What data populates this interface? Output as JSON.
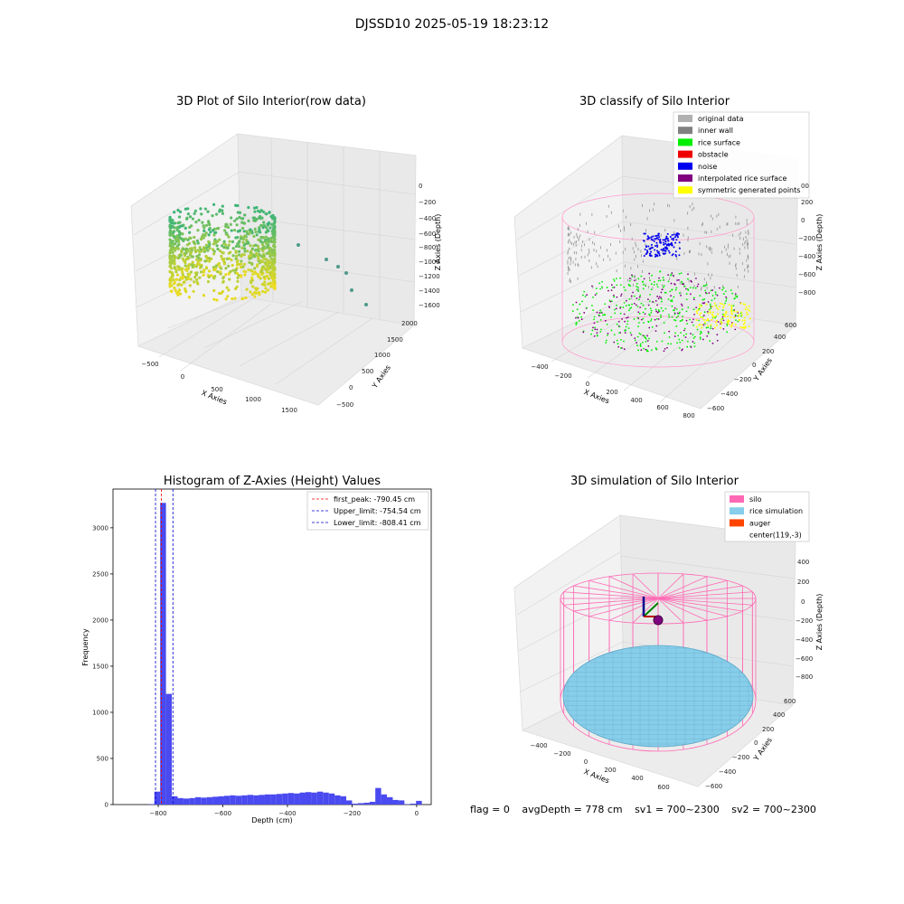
{
  "figure": {
    "suptitle": "DJSSD10 2025-05-19 18:23:12"
  },
  "panels": {
    "raw": {
      "title": "3D Plot of Silo Interior(row data)",
      "xlabel": "X Axies",
      "ylabel": "Y Axies",
      "zlabel": "Z Axies (Depth)",
      "x_ticks": [
        "−500",
        "0",
        "500",
        "1000",
        "1500"
      ],
      "y_ticks": [
        "−500",
        "0",
        "500",
        "1000",
        "1500",
        "2000"
      ],
      "z_ticks": [
        "0",
        "−200",
        "−400",
        "−600",
        "−800",
        "−1000",
        "−1200",
        "−1400",
        "−1600"
      ]
    },
    "classify": {
      "title": "3D classify of Silo Interior",
      "xlabel": "X Axies",
      "ylabel": "Y Axies",
      "zlabel": "Z Axies (Depth)",
      "x_ticks": [
        "−400",
        "−200",
        "0",
        "200",
        "400",
        "600",
        "800"
      ],
      "y_ticks": [
        "−600",
        "−400",
        "−200",
        "0",
        "200",
        "400",
        "600"
      ],
      "z_ticks": [
        "200",
        "0",
        "−200",
        "−400",
        "−600",
        "−800"
      ],
      "z_top_tick": "00",
      "legend": [
        {
          "label": "original data",
          "color": "#b0b0b0"
        },
        {
          "label": "inner wall",
          "color": "#808080"
        },
        {
          "label": "rice surface",
          "color": "#00ee00"
        },
        {
          "label": "obstacle",
          "color": "#ee0000"
        },
        {
          "label": "noise",
          "color": "#0000ee"
        },
        {
          "label": "interpolated rice surface",
          "color": "#800080"
        },
        {
          "label": "symmetric generated points",
          "color": "#ffff00"
        }
      ]
    },
    "simulation": {
      "title": "3D simulation of Silo Interior",
      "xlabel": "X Axies",
      "ylabel": "Y Axies",
      "zlabel": "Z Axies (Depth)",
      "x_ticks": [
        "−400",
        "−200",
        "0",
        "200",
        "400",
        "600"
      ],
      "y_ticks": [
        "−600",
        "−400",
        "−200",
        "0",
        "200",
        "400",
        "600"
      ],
      "z_ticks": [
        "400",
        "200",
        "0",
        "−200",
        "−400",
        "−600",
        "−800"
      ],
      "legend": [
        {
          "label": "silo",
          "color": "#ff69b4"
        },
        {
          "label": "rice simulation",
          "color": "#87ceeb"
        },
        {
          "label": "auger",
          "color": "#ff4500"
        },
        {
          "label": "center(119,-3)",
          "color": ""
        }
      ]
    }
  },
  "footer": {
    "flag": "flag = 0",
    "avg": "avgDepth = 778 cm",
    "sv1": "sv1 = 700~2300",
    "sv2": "sv2 = 700~2300"
  },
  "colors": {
    "histogram_bar": "#4a4af0",
    "first_peak_line": "#ee0000",
    "limit_lines": "#0000cc",
    "silo_wire": "#ff69b4",
    "rice_surface": "#87ceeb"
  },
  "chart_data": {
    "type": "bar",
    "title": "Histogram of Z-Axies (Height) Values",
    "xlabel": "Depth (cm)",
    "ylabel": "Frequency",
    "xlim": [
      -940,
      45
    ],
    "ylim": [
      0,
      3420
    ],
    "x_ticks": [
      -800,
      -600,
      -400,
      -200,
      0
    ],
    "x_tick_labels": [
      "−800",
      "−600",
      "−400",
      "−200",
      "0"
    ],
    "y_ticks": [
      0,
      500,
      1000,
      1500,
      2000,
      2500,
      3000
    ],
    "y_tick_labels": [
      "0",
      "500",
      "1000",
      "1500",
      "2000",
      "2500",
      "3000"
    ],
    "bin_width": 18,
    "bins": [
      {
        "x": -830,
        "value": 5
      },
      {
        "x": -812,
        "value": 140
      },
      {
        "x": -794,
        "value": 3270
      },
      {
        "x": -776,
        "value": 1200
      },
      {
        "x": -758,
        "value": 90
      },
      {
        "x": -740,
        "value": 70
      },
      {
        "x": -722,
        "value": 65
      },
      {
        "x": -704,
        "value": 70
      },
      {
        "x": -686,
        "value": 80
      },
      {
        "x": -668,
        "value": 75
      },
      {
        "x": -650,
        "value": 80
      },
      {
        "x": -632,
        "value": 85
      },
      {
        "x": -614,
        "value": 90
      },
      {
        "x": -596,
        "value": 95
      },
      {
        "x": -578,
        "value": 100
      },
      {
        "x": -560,
        "value": 95
      },
      {
        "x": -542,
        "value": 100
      },
      {
        "x": -524,
        "value": 105
      },
      {
        "x": -506,
        "value": 100
      },
      {
        "x": -488,
        "value": 105
      },
      {
        "x": -470,
        "value": 110
      },
      {
        "x": -452,
        "value": 110
      },
      {
        "x": -434,
        "value": 115
      },
      {
        "x": -416,
        "value": 120
      },
      {
        "x": -398,
        "value": 125
      },
      {
        "x": -380,
        "value": 120
      },
      {
        "x": -362,
        "value": 130
      },
      {
        "x": -344,
        "value": 135
      },
      {
        "x": -326,
        "value": 130
      },
      {
        "x": -308,
        "value": 140
      },
      {
        "x": -290,
        "value": 130
      },
      {
        "x": -272,
        "value": 120
      },
      {
        "x": -254,
        "value": 100
      },
      {
        "x": -236,
        "value": 90
      },
      {
        "x": -218,
        "value": 45
      },
      {
        "x": -200,
        "value": 10
      },
      {
        "x": -182,
        "value": 15
      },
      {
        "x": -164,
        "value": 20
      },
      {
        "x": -146,
        "value": 30
      },
      {
        "x": -128,
        "value": 180
      },
      {
        "x": -110,
        "value": 110
      },
      {
        "x": -92,
        "value": 80
      },
      {
        "x": -74,
        "value": 50
      },
      {
        "x": -56,
        "value": 45
      },
      {
        "x": -38,
        "value": 5
      },
      {
        "x": -20,
        "value": 10
      },
      {
        "x": -2,
        "value": 40
      }
    ],
    "vlines": [
      {
        "label": "first_peak: -790.45 cm",
        "x": -790.45,
        "color": "#ee0000"
      },
      {
        "label": "Upper_limit: -754.54 cm",
        "x": -754.54,
        "color": "#0000cc"
      },
      {
        "label": "Lower_limit: -808.41 cm",
        "x": -808.41,
        "color": "#0000cc"
      }
    ],
    "legend_loc": "upper right"
  }
}
